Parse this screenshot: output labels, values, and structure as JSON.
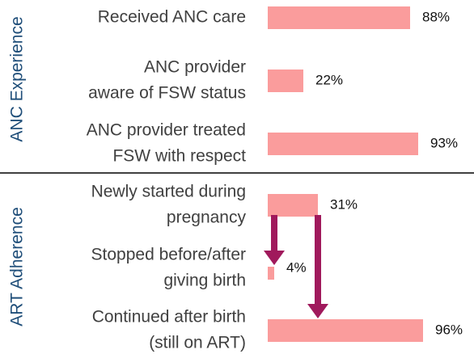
{
  "chart_data": {
    "type": "bar",
    "orientation": "horizontal",
    "xlim": [
      0,
      100
    ],
    "color": "#fa9c9c",
    "groups": [
      {
        "name": "ANC Experience",
        "categories": [
          [
            "Received ANC care"
          ],
          [
            "ANC provider",
            "aware of FSW status"
          ],
          [
            "ANC provider treated",
            "FSW with respect"
          ]
        ],
        "values": [
          88,
          22,
          93
        ],
        "value_labels": [
          "88%",
          "22%",
          "93%"
        ]
      },
      {
        "name": "ART Adherence",
        "categories": [
          [
            "Newly started during",
            "pregnancy"
          ],
          [
            "Stopped before/after",
            "giving birth"
          ],
          [
            "Continued after birth",
            "(still on ART)"
          ]
        ],
        "values": [
          31,
          4,
          96
        ],
        "value_labels": [
          "31%",
          "4%",
          "96%"
        ]
      }
    ]
  }
}
